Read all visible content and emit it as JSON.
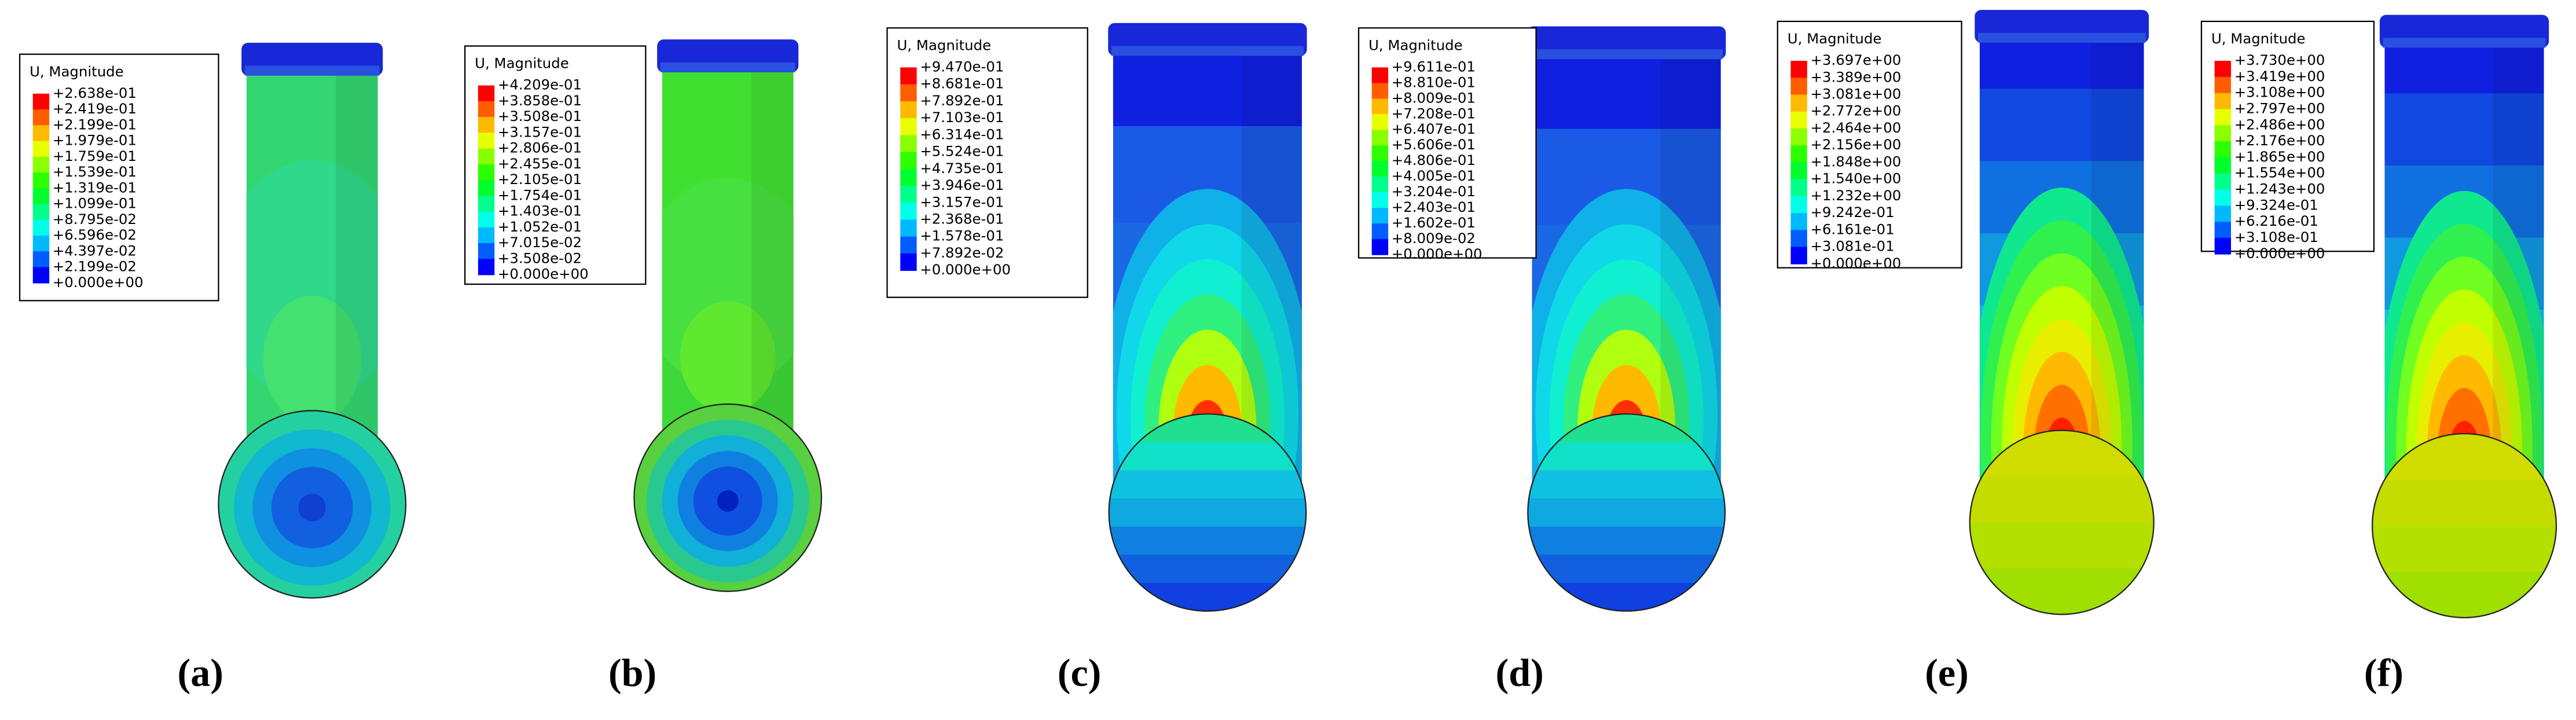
{
  "panels": [
    {
      "legend_title": "U, Magnitude",
      "legend_labels": [
        "+2.638e-01",
        "+2.419e-01",
        "+2.199e-01",
        "+1.979e-01",
        "+1.759e-01",
        "+1.539e-01",
        "+1.319e-01",
        "+1.099e-01",
        "+8.795e-02",
        "+6.596e-02",
        "+4.397e-02",
        "+2.199e-02",
        "+0.000e+00"
      ],
      "caption": "(a)"
    },
    {
      "legend_title": "U, Magnitude",
      "legend_labels": [
        "+4.209e-01",
        "+3.858e-01",
        "+3.508e-01",
        "+3.157e-01",
        "+2.806e-01",
        "+2.455e-01",
        "+2.105e-01",
        "+1.754e-01",
        "+1.403e-01",
        "+1.052e-01",
        "+7.015e-02",
        "+3.508e-02",
        "+0.000e+00"
      ],
      "caption": "(b)"
    },
    {
      "legend_title": "U, Magnitude",
      "legend_labels": [
        "+9.470e-01",
        "+8.681e-01",
        "+7.892e-01",
        "+7.103e-01",
        "+6.314e-01",
        "+5.524e-01",
        "+4.735e-01",
        "+3.946e-01",
        "+3.157e-01",
        "+2.368e-01",
        "+1.578e-01",
        "+7.892e-02",
        "+0.000e+00"
      ],
      "caption": "(c)"
    },
    {
      "legend_title": "U, Magnitude",
      "legend_labels": [
        "+9.611e-01",
        "+8.810e-01",
        "+8.009e-01",
        "+7.208e-01",
        "+6.407e-01",
        "+5.606e-01",
        "+4.806e-01",
        "+4.005e-01",
        "+3.204e-01",
        "+2.403e-01",
        "+1.602e-01",
        "+8.009e-02",
        "+0.000e+00"
      ],
      "caption": "(d)"
    },
    {
      "legend_title": "U, Magnitude",
      "legend_labels": [
        "+3.697e+00",
        "+3.389e+00",
        "+3.081e+00",
        "+2.772e+00",
        "+2.464e+00",
        "+2.156e+00",
        "+1.848e+00",
        "+1.540e+00",
        "+1.232e+00",
        "+9.242e-01",
        "+6.161e-01",
        "+3.081e-01",
        "+0.000e+00"
      ],
      "caption": "(e)"
    },
    {
      "legend_title": "U, Magnitude",
      "legend_labels": [
        "+3.730e+00",
        "+3.419e+00",
        "+3.108e+00",
        "+2.797e+00",
        "+2.486e+00",
        "+2.176e+00",
        "+1.865e+00",
        "+1.554e+00",
        "+1.243e+00",
        "+9.324e-01",
        "+6.216e-01",
        "+3.108e-01",
        "+0.000e+00"
      ],
      "caption": "(f)"
    }
  ]
}
